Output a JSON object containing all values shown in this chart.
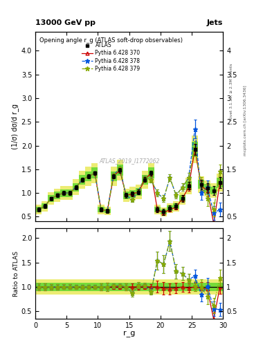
{
  "title_top": "13000 GeV pp",
  "title_right": "Jets",
  "plot_title": "Opening angle r_g (ATLAS soft-drop observables)",
  "ylabel_main": "(1/σ) dσ/d r_g",
  "ylabel_ratio": "Ratio to ATLAS",
  "xlabel": "r_g",
  "watermark": "ATLAS_2019_I1772062",
  "right_label1": "Rivet 3.1.10, ≥ 2.3M events",
  "right_label2": "mcplots.cern.ch [arXiv:1306.3436]",
  "xlim": [
    0,
    30
  ],
  "ylim_main": [
    0.4,
    4.4
  ],
  "ylim_ratio": [
    0.35,
    2.2
  ],
  "x": [
    0.5,
    1.5,
    2.5,
    3.5,
    4.5,
    5.5,
    6.5,
    7.5,
    8.5,
    9.5,
    10.5,
    11.5,
    12.5,
    13.5,
    14.5,
    15.5,
    16.5,
    17.5,
    18.5,
    19.5,
    20.5,
    21.5,
    22.5,
    23.5,
    24.5,
    25.5,
    26.5,
    27.5,
    28.5,
    29.5
  ],
  "atlas_y": [
    0.65,
    0.72,
    0.88,
    0.95,
    1.0,
    1.0,
    1.12,
    1.28,
    1.35,
    1.42,
    0.65,
    0.62,
    1.35,
    1.48,
    0.95,
    0.98,
    1.02,
    1.28,
    1.42,
    0.65,
    0.6,
    0.68,
    0.72,
    0.88,
    1.15,
    1.92,
    1.18,
    1.1,
    1.05,
    1.22
  ],
  "atlas_ye": [
    0.04,
    0.04,
    0.04,
    0.04,
    0.04,
    0.04,
    0.04,
    0.04,
    0.04,
    0.04,
    0.04,
    0.04,
    0.05,
    0.05,
    0.05,
    0.05,
    0.05,
    0.05,
    0.05,
    0.06,
    0.06,
    0.06,
    0.06,
    0.07,
    0.08,
    0.12,
    0.1,
    0.1,
    0.1,
    0.12
  ],
  "py370_y": [
    0.65,
    0.72,
    0.88,
    0.95,
    1.0,
    1.0,
    1.12,
    1.28,
    1.35,
    1.42,
    0.65,
    0.62,
    1.35,
    1.48,
    0.95,
    0.98,
    1.02,
    1.28,
    1.42,
    0.65,
    0.58,
    0.65,
    0.7,
    0.88,
    1.12,
    1.92,
    1.15,
    1.05,
    0.35,
    1.22
  ],
  "py370_ye": [
    0.03,
    0.03,
    0.03,
    0.03,
    0.03,
    0.03,
    0.03,
    0.03,
    0.03,
    0.03,
    0.03,
    0.03,
    0.04,
    0.04,
    0.04,
    0.04,
    0.04,
    0.04,
    0.05,
    0.05,
    0.05,
    0.05,
    0.05,
    0.06,
    0.07,
    0.1,
    0.1,
    0.12,
    0.15,
    0.12
  ],
  "py378_y": [
    0.65,
    0.72,
    0.88,
    0.95,
    1.0,
    1.0,
    1.12,
    1.28,
    1.35,
    1.42,
    0.65,
    0.62,
    1.38,
    1.52,
    0.95,
    0.85,
    1.05,
    1.32,
    1.28,
    1.0,
    0.88,
    1.32,
    0.95,
    1.12,
    1.32,
    2.35,
    1.0,
    1.12,
    0.58,
    0.65
  ],
  "py378_ye": [
    0.03,
    0.03,
    0.03,
    0.03,
    0.03,
    0.03,
    0.03,
    0.03,
    0.03,
    0.03,
    0.03,
    0.03,
    0.04,
    0.04,
    0.04,
    0.04,
    0.04,
    0.04,
    0.06,
    0.07,
    0.07,
    0.07,
    0.07,
    0.08,
    0.1,
    0.2,
    0.15,
    0.15,
    0.15,
    0.15
  ],
  "py379_y": [
    0.65,
    0.72,
    0.88,
    0.95,
    1.0,
    1.0,
    1.12,
    1.28,
    1.35,
    1.42,
    0.65,
    0.62,
    1.38,
    1.52,
    0.95,
    0.85,
    1.05,
    1.32,
    1.28,
    1.0,
    0.88,
    1.32,
    0.95,
    1.12,
    1.32,
    1.95,
    1.18,
    0.88,
    0.65,
    1.45
  ],
  "py379_ye": [
    0.03,
    0.03,
    0.03,
    0.03,
    0.03,
    0.03,
    0.03,
    0.03,
    0.03,
    0.03,
    0.03,
    0.03,
    0.04,
    0.04,
    0.04,
    0.04,
    0.04,
    0.04,
    0.06,
    0.07,
    0.07,
    0.07,
    0.07,
    0.08,
    0.1,
    0.15,
    0.15,
    0.15,
    0.15,
    0.15
  ],
  "color_atlas": "#000000",
  "color_py370": "#cc0000",
  "color_py378": "#0055dd",
  "color_py379": "#88aa00",
  "band_green": "#00cc00",
  "band_yellow": "#dddd00",
  "xticks": [
    0,
    5,
    10,
    15,
    20,
    25,
    30
  ],
  "yticks_main": [
    0.5,
    1.0,
    1.5,
    2.0,
    2.5,
    3.0,
    3.5,
    4.0
  ],
  "yticks_ratio": [
    0.5,
    1.0,
    1.5,
    2.0
  ]
}
